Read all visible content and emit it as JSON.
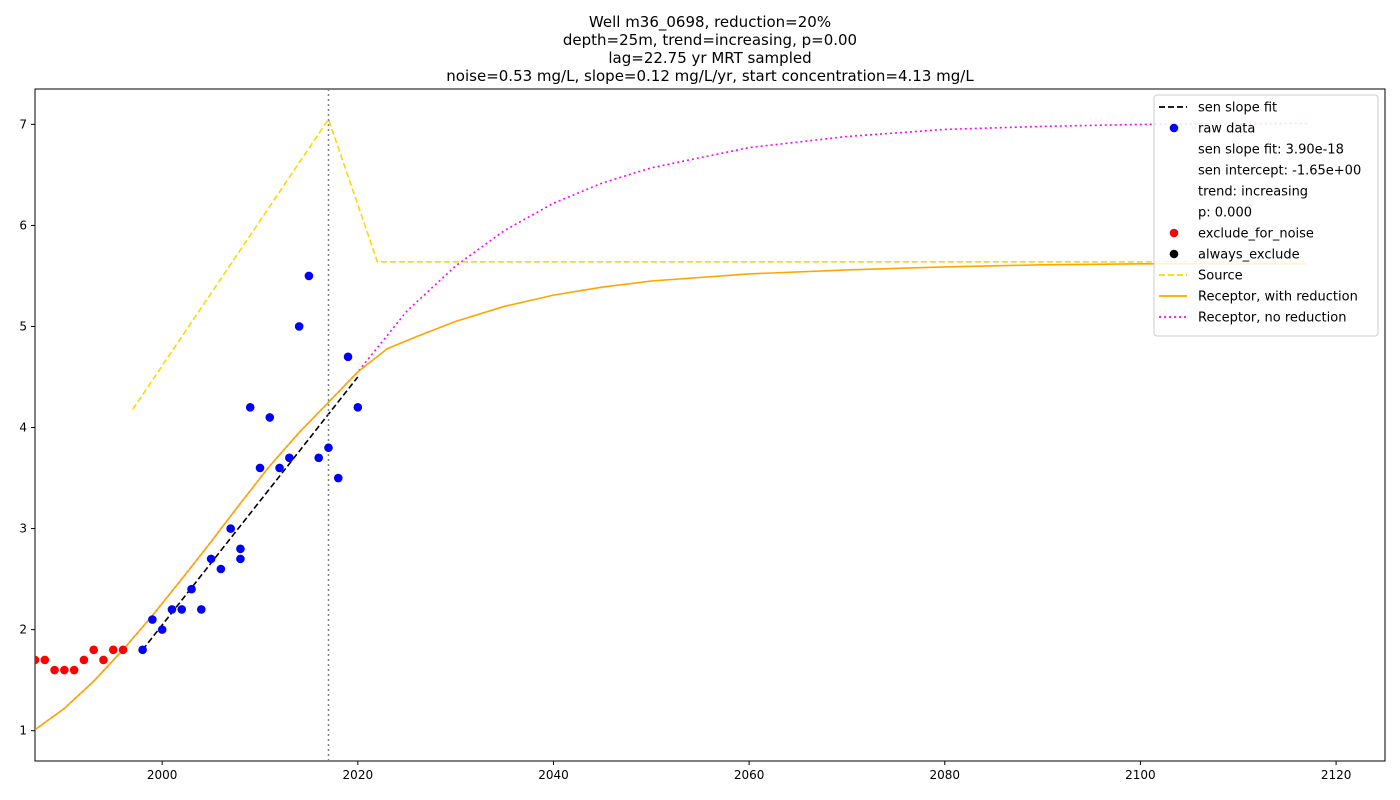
{
  "chart_data": {
    "type": "scatter",
    "title_lines": [
      "Well m36_0698, reduction=20%",
      "depth=25m, trend=increasing, p=0.00",
      "lag=22.75 yr MRT sampled",
      "noise=0.53 mg/L, slope=0.12 mg/L/yr, start concentration=4.13 mg/L"
    ],
    "xlabel": "",
    "ylabel": "",
    "xlim": [
      1987,
      2125
    ],
    "ylim": [
      0.7,
      7.35
    ],
    "x_ticks": [
      2000,
      2020,
      2040,
      2060,
      2080,
      2100,
      2120
    ],
    "y_ticks": [
      1,
      2,
      3,
      4,
      5,
      6,
      7
    ],
    "grid": false,
    "legend_position": "top-right",
    "vertical_line": {
      "x": 2017,
      "color": "#808080",
      "style": "dotted"
    },
    "series": [
      {
        "name": "Source",
        "kind": "line",
        "color": "#FFD700",
        "style": "dashed",
        "points": [
          [
            1997,
            4.18
          ],
          [
            2017,
            7.05
          ],
          [
            2022,
            5.64
          ],
          [
            2117,
            5.64
          ]
        ]
      },
      {
        "name": "Receptor, no reduction",
        "kind": "line",
        "color": "#FF00FF",
        "style": "dotted",
        "points": [
          [
            1987,
            1.01
          ],
          [
            1990,
            1.22
          ],
          [
            1993,
            1.49
          ],
          [
            1996,
            1.8
          ],
          [
            1999,
            2.14
          ],
          [
            2002,
            2.5
          ],
          [
            2005,
            2.87
          ],
          [
            2008,
            3.25
          ],
          [
            2011,
            3.62
          ],
          [
            2014,
            3.95
          ],
          [
            2017,
            4.25
          ],
          [
            2020,
            4.55
          ],
          [
            2025,
            5.15
          ],
          [
            2030,
            5.6
          ],
          [
            2035,
            5.95
          ],
          [
            2040,
            6.22
          ],
          [
            2045,
            6.42
          ],
          [
            2050,
            6.57
          ],
          [
            2060,
            6.77
          ],
          [
            2070,
            6.88
          ],
          [
            2080,
            6.95
          ],
          [
            2090,
            6.98
          ],
          [
            2100,
            7.0
          ],
          [
            2117,
            7.01
          ]
        ]
      },
      {
        "name": "Receptor, with reduction",
        "kind": "line",
        "color": "#FFA500",
        "style": "solid",
        "points": [
          [
            1987,
            1.01
          ],
          [
            1990,
            1.22
          ],
          [
            1993,
            1.49
          ],
          [
            1996,
            1.8
          ],
          [
            1999,
            2.14
          ],
          [
            2002,
            2.5
          ],
          [
            2005,
            2.87
          ],
          [
            2008,
            3.25
          ],
          [
            2011,
            3.62
          ],
          [
            2014,
            3.95
          ],
          [
            2017,
            4.25
          ],
          [
            2020,
            4.55
          ],
          [
            2023,
            4.78
          ],
          [
            2026,
            4.9
          ],
          [
            2030,
            5.05
          ],
          [
            2035,
            5.2
          ],
          [
            2040,
            5.31
          ],
          [
            2045,
            5.39
          ],
          [
            2050,
            5.45
          ],
          [
            2060,
            5.52
          ],
          [
            2070,
            5.56
          ],
          [
            2080,
            5.59
          ],
          [
            2090,
            5.61
          ],
          [
            2100,
            5.62
          ],
          [
            2117,
            5.62
          ]
        ]
      },
      {
        "name": "sen slope fit",
        "kind": "line",
        "color": "#000000",
        "style": "dashed",
        "points": [
          [
            1998,
            1.8
          ],
          [
            2020,
            4.5
          ]
        ]
      },
      {
        "name": "raw data",
        "kind": "scatter",
        "color": "#0000FF",
        "points": [
          [
            1998,
            1.8
          ],
          [
            1999,
            2.1
          ],
          [
            2000,
            2.0
          ],
          [
            2001,
            2.2
          ],
          [
            2002,
            2.2
          ],
          [
            2003,
            2.4
          ],
          [
            2004,
            2.2
          ],
          [
            2005,
            2.7
          ],
          [
            2006,
            2.6
          ],
          [
            2007,
            3.0
          ],
          [
            2008,
            2.8
          ],
          [
            2008,
            2.7
          ],
          [
            2009,
            4.2
          ],
          [
            2010,
            3.6
          ],
          [
            2011,
            4.1
          ],
          [
            2012,
            3.6
          ],
          [
            2013,
            3.7
          ],
          [
            2014,
            5.0
          ],
          [
            2015,
            5.5
          ],
          [
            2016,
            3.7
          ],
          [
            2017,
            3.8
          ],
          [
            2018,
            3.5
          ],
          [
            2019,
            4.7
          ],
          [
            2020,
            4.2
          ]
        ]
      },
      {
        "name": "exclude_for_noise",
        "kind": "scatter",
        "color": "#FF0000",
        "points": [
          [
            1987,
            1.7
          ],
          [
            1988,
            1.7
          ],
          [
            1989,
            1.6
          ],
          [
            1990,
            1.6
          ],
          [
            1991,
            1.6
          ],
          [
            1992,
            1.7
          ],
          [
            1993,
            1.8
          ],
          [
            1994,
            1.7
          ],
          [
            1995,
            1.8
          ],
          [
            1996,
            1.8
          ]
        ]
      },
      {
        "name": "always_exclude",
        "kind": "scatter",
        "color": "#000000",
        "points": []
      }
    ],
    "legend": [
      {
        "label": "sen slope fit",
        "marker": "dashed-line",
        "color": "#000000"
      },
      {
        "label": "raw data",
        "marker": "dot",
        "color": "#0000FF"
      },
      {
        "label": "sen slope fit: 3.90e-18",
        "marker": "none",
        "color": ""
      },
      {
        "label": "sen intercept: -1.65e+00",
        "marker": "none",
        "color": ""
      },
      {
        "label": "trend: increasing",
        "marker": "none",
        "color": ""
      },
      {
        "label": "p: 0.000",
        "marker": "none",
        "color": ""
      },
      {
        "label": "exclude_for_noise",
        "marker": "dot",
        "color": "#FF0000"
      },
      {
        "label": "always_exclude",
        "marker": "dot",
        "color": "#000000"
      },
      {
        "label": "Source",
        "marker": "dashed-line",
        "color": "#FFD700"
      },
      {
        "label": "Receptor, with reduction",
        "marker": "solid-line",
        "color": "#FFA500"
      },
      {
        "label": "Receptor, no reduction",
        "marker": "dotted-line",
        "color": "#FF00FF"
      }
    ]
  }
}
